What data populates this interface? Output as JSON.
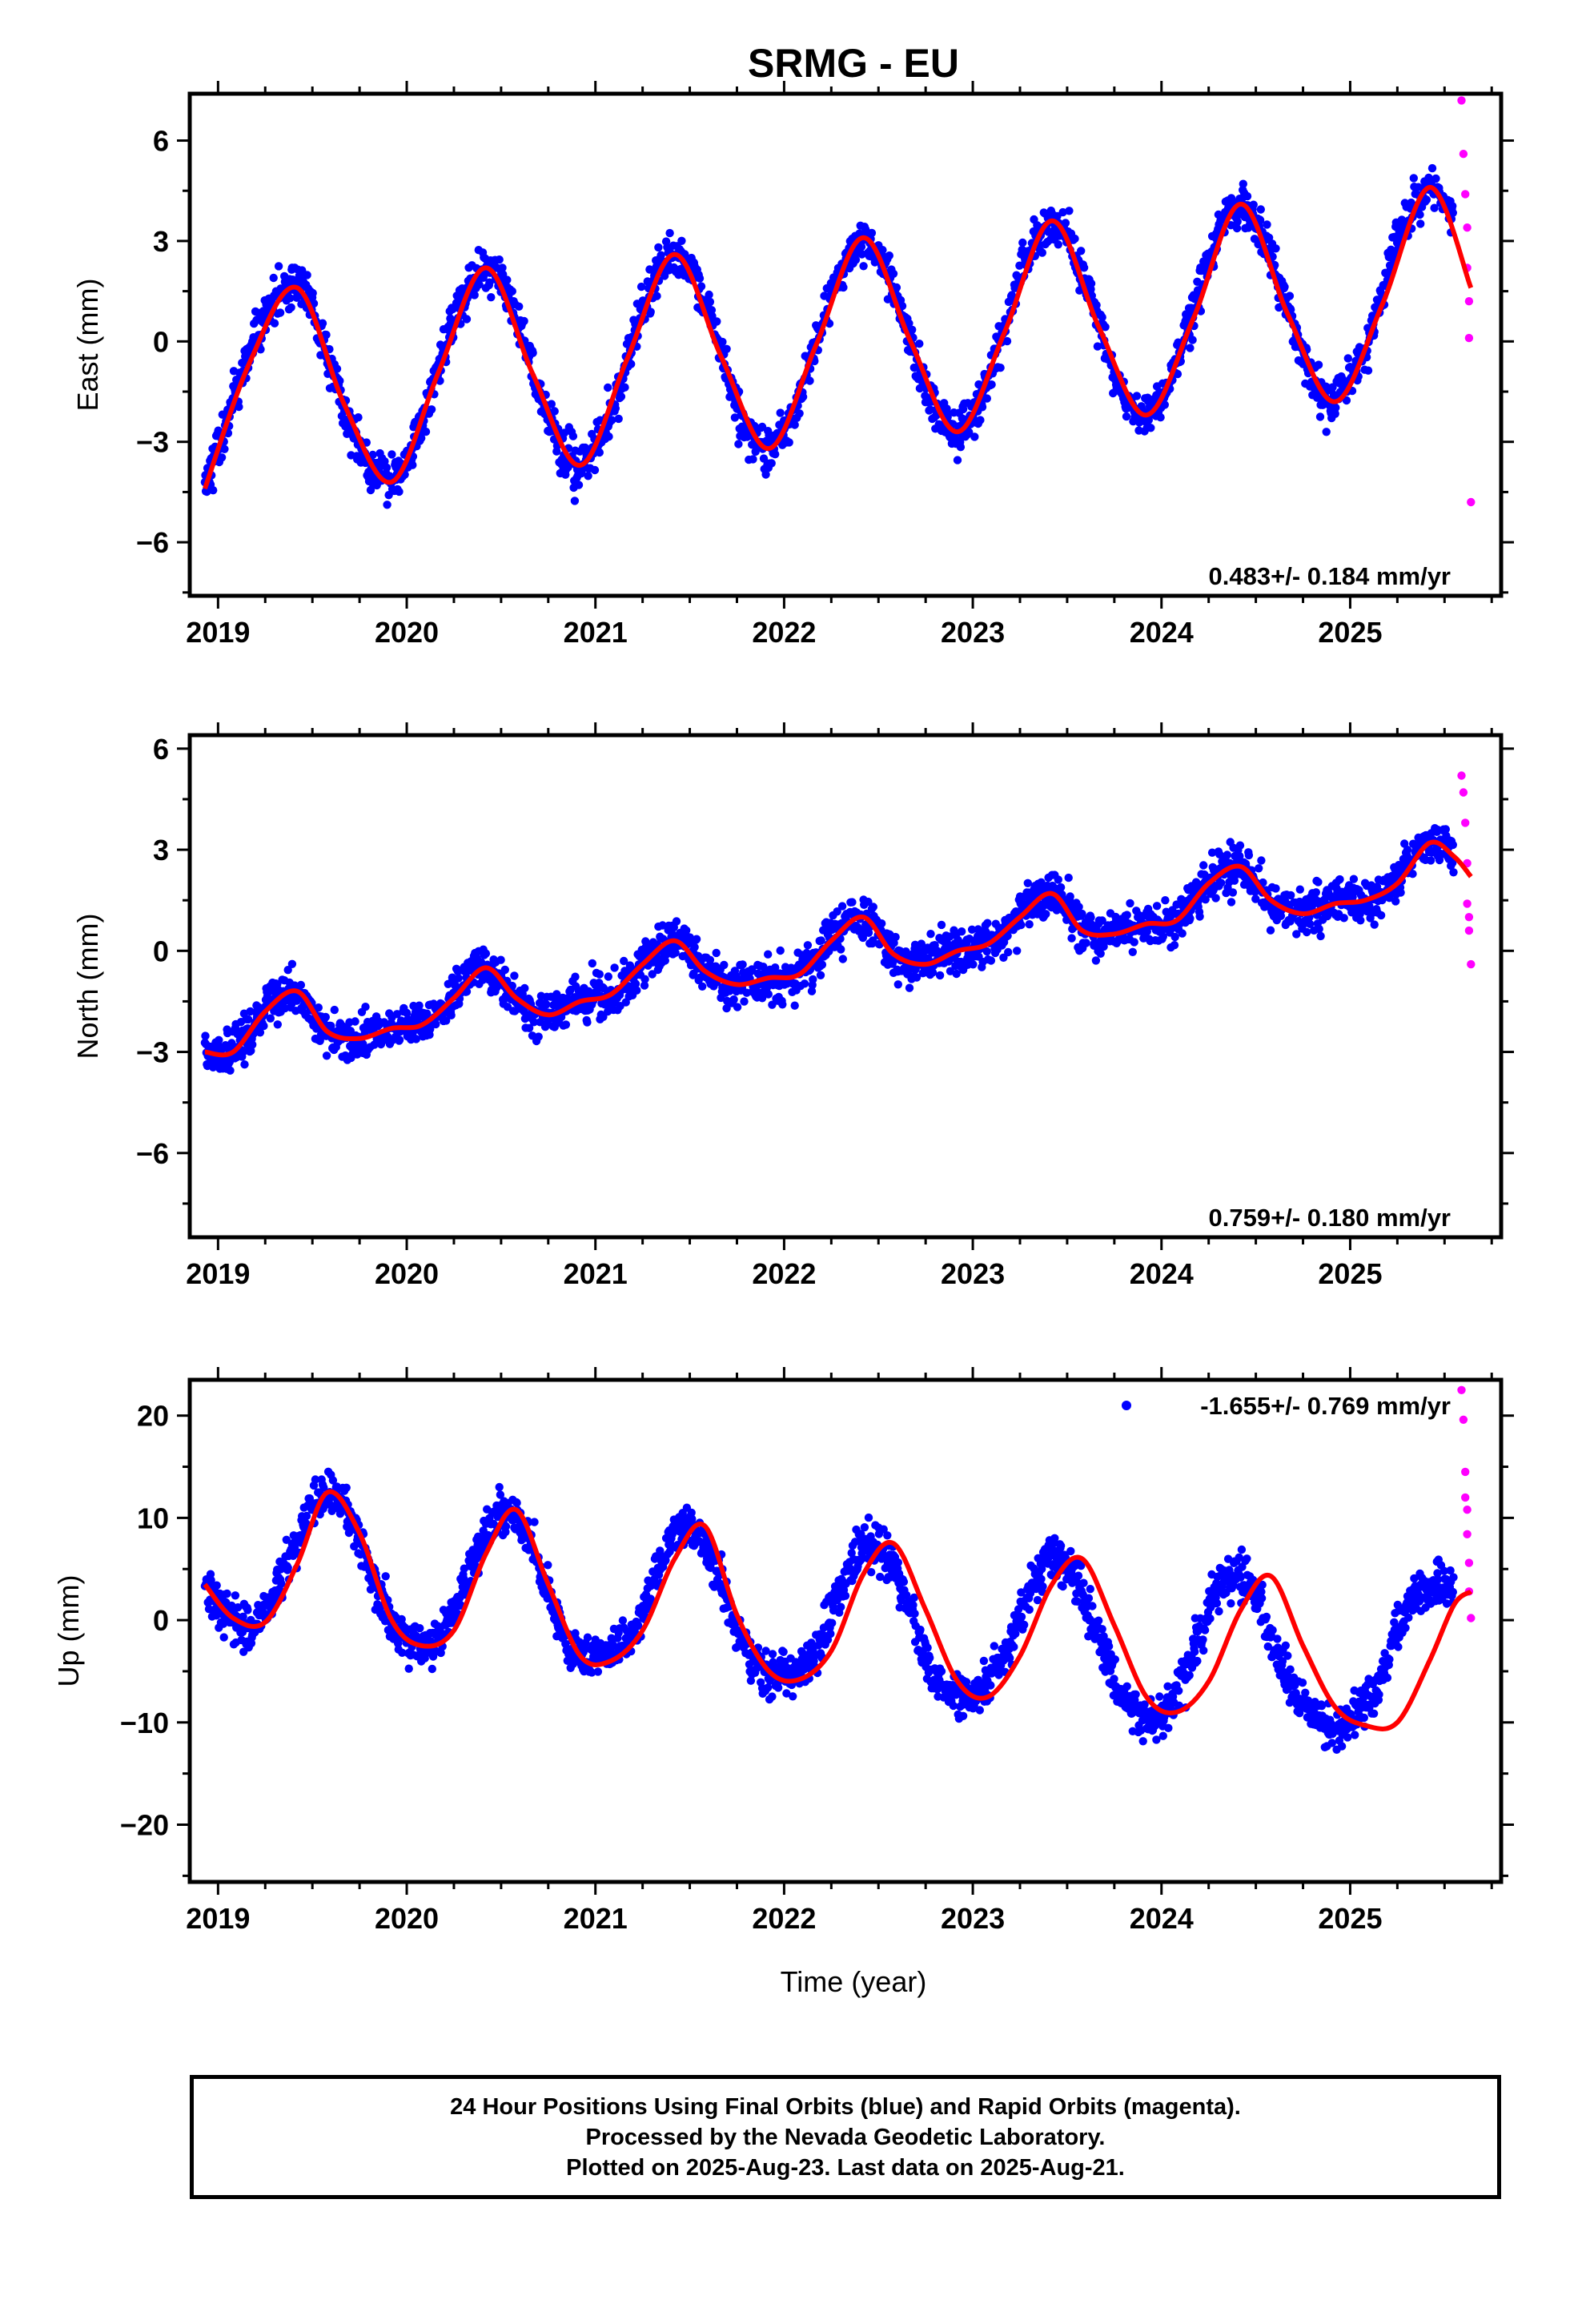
{
  "title": "SRMG - EU",
  "xlabel": "Time (year)",
  "colors": {
    "final": "#0000ff",
    "rapid": "#ff00ff",
    "trend": "#ff0000"
  },
  "footer": {
    "line1": "24 Hour Positions Using Final Orbits (blue) and Rapid Orbits (magenta).",
    "line2": "Processed by the Nevada Geodetic Laboratory.",
    "line3": "Plotted on 2025-Aug-23. Last data on 2025-Aug-21."
  },
  "chart_data": [
    {
      "type": "scatter",
      "name": "east",
      "ylabel": "East (mm)",
      "rate_label": "0.483+/- 0.184 mm/yr",
      "xlim": [
        2018.85,
        2025.8
      ],
      "ylim": [
        -7.6,
        7.4
      ],
      "xticks": [
        2019,
        2020,
        2021,
        2022,
        2023,
        2024,
        2025
      ],
      "yticks": [
        6,
        3,
        0,
        -3,
        -6
      ],
      "series": [
        {
          "name": "Final Orbits (blue)",
          "role": "final",
          "x": [
            2018.93,
            2019.0,
            2019.08,
            2019.17,
            2019.25,
            2019.33,
            2019.42,
            2019.5,
            2019.58,
            2019.67,
            2019.75,
            2019.83,
            2019.92,
            2020.0,
            2020.08,
            2020.17,
            2020.25,
            2020.33,
            2020.42,
            2020.5,
            2020.58,
            2020.67,
            2020.75,
            2020.83,
            2020.92,
            2021.0,
            2021.08,
            2021.17,
            2021.25,
            2021.33,
            2021.42,
            2021.5,
            2021.58,
            2021.67,
            2021.75,
            2021.83,
            2021.92,
            2022.0,
            2022.08,
            2022.17,
            2022.25,
            2022.33,
            2022.42,
            2022.5,
            2022.58,
            2022.67,
            2022.75,
            2022.83,
            2022.92,
            2023.0,
            2023.08,
            2023.17,
            2023.25,
            2023.33,
            2023.42,
            2023.5,
            2023.58,
            2023.67,
            2023.75,
            2023.83,
            2023.92,
            2024.0,
            2024.08,
            2024.17,
            2024.25,
            2024.33,
            2024.42,
            2024.5,
            2024.58,
            2024.67,
            2024.75,
            2024.83,
            2024.92,
            2025.0,
            2025.08,
            2025.17,
            2025.25,
            2025.33,
            2025.42,
            2025.5,
            2025.55
          ],
          "y": [
            -4.3,
            -3.3,
            -1.9,
            -0.3,
            0.8,
            1.5,
            1.7,
            1.1,
            -0.4,
            -2.0,
            -3.3,
            -4.0,
            -4.1,
            -3.6,
            -2.4,
            -0.8,
            0.7,
            1.7,
            2.2,
            1.9,
            0.7,
            -0.9,
            -2.4,
            -3.4,
            -3.7,
            -3.2,
            -2.1,
            -0.4,
            1.1,
            2.1,
            2.6,
            2.3,
            1.2,
            -0.4,
            -1.9,
            -2.9,
            -3.2,
            -2.8,
            -1.7,
            -0.1,
            1.5,
            2.6,
            3.1,
            2.7,
            1.6,
            0.1,
            -1.4,
            -2.4,
            -2.7,
            -2.3,
            -1.2,
            0.4,
            2.0,
            3.1,
            3.6,
            3.2,
            2.1,
            0.5,
            -1.0,
            -2.0,
            -2.2,
            -1.8,
            -0.7,
            0.9,
            2.5,
            3.6,
            4.1,
            3.7,
            2.5,
            1.0,
            -0.5,
            -1.5,
            -1.8,
            -1.3,
            -0.2,
            1.4,
            2.9,
            4.0,
            4.6,
            4.3,
            3.6
          ]
        },
        {
          "name": "Rapid Orbits (magenta)",
          "role": "rapid",
          "x": [
            2025.59,
            2025.6,
            2025.61,
            2025.62,
            2025.62,
            2025.63,
            2025.63,
            2025.64
          ],
          "y": [
            7.2,
            5.6,
            4.4,
            3.4,
            2.2,
            1.2,
            0.1,
            -4.8
          ]
        },
        {
          "name": "trend",
          "role": "trend",
          "x": [
            2018.93,
            2019.17,
            2019.42,
            2019.67,
            2019.92,
            2020.17,
            2020.42,
            2020.67,
            2020.92,
            2021.17,
            2021.42,
            2021.67,
            2021.92,
            2022.17,
            2022.42,
            2022.67,
            2022.92,
            2023.17,
            2023.42,
            2023.67,
            2023.92,
            2024.17,
            2024.42,
            2024.67,
            2024.92,
            2025.17,
            2025.42,
            2025.64
          ],
          "y": [
            -4.4,
            -0.6,
            1.6,
            -1.9,
            -4.2,
            -0.9,
            2.2,
            -1.0,
            -3.7,
            -0.5,
            2.6,
            -0.5,
            -3.2,
            -0.1,
            3.1,
            0.0,
            -2.7,
            0.3,
            3.6,
            0.4,
            -2.2,
            0.7,
            4.1,
            0.8,
            -1.8,
            1.1,
            4.6,
            1.6
          ]
        }
      ]
    },
    {
      "type": "scatter",
      "name": "north",
      "ylabel": "North (mm)",
      "rate_label": "0.759+/- 0.180 mm/yr",
      "xlim": [
        2018.85,
        2025.8
      ],
      "ylim": [
        -8.5,
        6.4
      ],
      "xticks": [
        2019,
        2020,
        2021,
        2022,
        2023,
        2024,
        2025
      ],
      "yticks": [
        6,
        3,
        0,
        -3,
        -6
      ],
      "series": [
        {
          "name": "Final Orbits (blue)",
          "role": "final",
          "x": [
            2018.93,
            2019.0,
            2019.08,
            2019.17,
            2019.25,
            2019.33,
            2019.42,
            2019.5,
            2019.58,
            2019.67,
            2019.75,
            2019.83,
            2019.92,
            2020.0,
            2020.08,
            2020.17,
            2020.25,
            2020.33,
            2020.42,
            2020.5,
            2020.58,
            2020.67,
            2020.75,
            2020.83,
            2020.92,
            2021.0,
            2021.08,
            2021.17,
            2021.25,
            2021.33,
            2021.42,
            2021.5,
            2021.58,
            2021.67,
            2021.75,
            2021.83,
            2021.92,
            2022.0,
            2022.08,
            2022.17,
            2022.25,
            2022.33,
            2022.42,
            2022.5,
            2022.58,
            2022.67,
            2022.75,
            2022.83,
            2022.92,
            2023.0,
            2023.08,
            2023.17,
            2023.25,
            2023.33,
            2023.42,
            2023.5,
            2023.58,
            2023.67,
            2023.75,
            2023.83,
            2023.92,
            2024.0,
            2024.08,
            2024.17,
            2024.25,
            2024.33,
            2024.42,
            2024.5,
            2024.58,
            2024.67,
            2024.75,
            2024.83,
            2024.92,
            2025.0,
            2025.08,
            2025.17,
            2025.25,
            2025.33,
            2025.42,
            2025.5,
            2025.55
          ],
          "y": [
            -3.0,
            -3.1,
            -3.0,
            -2.4,
            -1.7,
            -1.3,
            -1.3,
            -1.8,
            -2.5,
            -2.7,
            -2.6,
            -2.4,
            -2.3,
            -2.3,
            -2.2,
            -1.9,
            -1.3,
            -0.7,
            -0.5,
            -0.8,
            -1.5,
            -1.9,
            -1.9,
            -1.7,
            -1.5,
            -1.4,
            -1.3,
            -1.0,
            -0.4,
            0.1,
            0.3,
            0.0,
            -0.6,
            -1.0,
            -1.0,
            -0.9,
            -0.8,
            -0.8,
            -0.7,
            -0.3,
            0.4,
            0.9,
            1.0,
            0.5,
            -0.2,
            -0.4,
            -0.3,
            -0.1,
            0.0,
            0.1,
            0.2,
            0.5,
            1.1,
            1.6,
            1.7,
            1.3,
            0.6,
            0.4,
            0.5,
            0.7,
            0.8,
            0.7,
            0.9,
            1.4,
            2.1,
            2.5,
            2.5,
            2.0,
            1.5,
            1.2,
            1.1,
            1.3,
            1.5,
            1.5,
            1.5,
            1.6,
            2.1,
            2.8,
            3.2,
            3.1,
            2.7
          ]
        },
        {
          "name": "Rapid Orbits (magenta)",
          "role": "rapid",
          "x": [
            2025.59,
            2025.6,
            2025.61,
            2025.62,
            2025.62,
            2025.63,
            2025.63,
            2025.64
          ],
          "y": [
            5.2,
            4.7,
            3.8,
            2.6,
            1.4,
            1.0,
            0.6,
            -0.4
          ]
        },
        {
          "name": "trend",
          "role": "trend",
          "x": [
            2018.93,
            2019.08,
            2019.25,
            2019.42,
            2019.58,
            2019.75,
            2019.92,
            2020.08,
            2020.25,
            2020.42,
            2020.58,
            2020.75,
            2020.92,
            2021.08,
            2021.25,
            2021.42,
            2021.58,
            2021.75,
            2021.92,
            2022.08,
            2022.25,
            2022.42,
            2022.58,
            2022.75,
            2022.92,
            2023.08,
            2023.25,
            2023.42,
            2023.58,
            2023.75,
            2023.92,
            2024.08,
            2024.25,
            2024.42,
            2024.58,
            2024.75,
            2024.92,
            2025.08,
            2025.25,
            2025.42,
            2025.55,
            2025.64
          ],
          "y": [
            -3.0,
            -3.0,
            -1.8,
            -1.2,
            -2.4,
            -2.6,
            -2.3,
            -2.2,
            -1.4,
            -0.5,
            -1.4,
            -1.9,
            -1.5,
            -1.3,
            -0.4,
            0.3,
            -0.6,
            -1.0,
            -0.8,
            -0.7,
            0.3,
            1.0,
            -0.1,
            -0.4,
            0.0,
            0.2,
            1.0,
            1.7,
            0.6,
            0.5,
            0.8,
            0.9,
            2.0,
            2.5,
            1.5,
            1.1,
            1.4,
            1.5,
            2.0,
            3.2,
            2.8,
            2.2
          ]
        }
      ]
    },
    {
      "type": "scatter",
      "name": "up",
      "ylabel": "Up (mm)",
      "rate_label": "-1.655+/- 0.769 mm/yr",
      "xlim": [
        2018.85,
        2025.8
      ],
      "ylim": [
        -25.6,
        23.5
      ],
      "xticks": [
        2019,
        2020,
        2021,
        2022,
        2023,
        2024,
        2025
      ],
      "yticks": [
        20,
        10,
        0,
        -10,
        -20
      ],
      "series": [
        {
          "name": "Final Orbits (blue)",
          "role": "final",
          "x": [
            2018.93,
            2019.0,
            2019.08,
            2019.17,
            2019.25,
            2019.33,
            2019.42,
            2019.5,
            2019.58,
            2019.67,
            2019.75,
            2019.83,
            2019.92,
            2020.0,
            2020.08,
            2020.17,
            2020.25,
            2020.33,
            2020.42,
            2020.5,
            2020.58,
            2020.67,
            2020.75,
            2020.83,
            2020.92,
            2021.0,
            2021.08,
            2021.17,
            2021.25,
            2021.33,
            2021.42,
            2021.5,
            2021.58,
            2021.67,
            2021.75,
            2021.83,
            2021.92,
            2022.0,
            2022.08,
            2022.17,
            2022.25,
            2022.33,
            2022.42,
            2022.5,
            2022.58,
            2022.67,
            2022.75,
            2022.83,
            2022.92,
            2023.0,
            2023.08,
            2023.17,
            2023.25,
            2023.33,
            2023.42,
            2023.5,
            2023.58,
            2023.67,
            2023.75,
            2023.83,
            2023.92,
            2024.0,
            2024.08,
            2024.17,
            2024.25,
            2024.33,
            2024.42,
            2024.5,
            2024.58,
            2024.67,
            2024.75,
            2024.83,
            2024.92,
            2025.0,
            2025.08,
            2025.17,
            2025.25,
            2025.33,
            2025.42,
            2025.5,
            2025.55
          ],
          "y": [
            3.5,
            1.5,
            0.0,
            -1.0,
            0.5,
            4.0,
            8.0,
            11.0,
            12.5,
            11.5,
            8.0,
            3.5,
            0.0,
            -2.0,
            -2.5,
            -2.0,
            0.5,
            4.5,
            8.5,
            10.8,
            10.0,
            7.0,
            2.5,
            -1.5,
            -3.5,
            -4.0,
            -3.5,
            -2.0,
            1.0,
            5.0,
            8.5,
            9.5,
            7.5,
            3.0,
            -1.5,
            -4.0,
            -5.5,
            -5.5,
            -5.0,
            -3.0,
            0.5,
            4.5,
            7.5,
            7.5,
            5.0,
            1.0,
            -3.5,
            -6.5,
            -7.5,
            -7.5,
            -6.0,
            -3.5,
            0.0,
            4.0,
            6.0,
            5.5,
            2.5,
            -2.0,
            -6.0,
            -8.5,
            -9.5,
            -9.0,
            -7.0,
            -3.0,
            1.0,
            4.0,
            4.5,
            2.5,
            -1.5,
            -5.5,
            -8.5,
            -10.0,
            -10.5,
            -10.0,
            -8.5,
            -5.5,
            -1.0,
            2.0,
            3.0,
            3.5,
            3.0
          ]
        },
        {
          "name": "Rapid Orbits (magenta)",
          "role": "rapid",
          "x": [
            2025.59,
            2025.6,
            2025.61,
            2025.61,
            2025.62,
            2025.62,
            2025.63,
            2025.63,
            2025.64
          ],
          "y": [
            22.5,
            19.6,
            14.5,
            12.0,
            10.8,
            8.4,
            5.6,
            2.8,
            0.2
          ]
        },
        {
          "name": "trend",
          "role": "trend",
          "x": [
            2018.93,
            2019.08,
            2019.25,
            2019.42,
            2019.58,
            2019.75,
            2019.92,
            2020.08,
            2020.25,
            2020.42,
            2020.58,
            2020.75,
            2020.92,
            2021.08,
            2021.25,
            2021.42,
            2021.58,
            2021.75,
            2021.92,
            2022.08,
            2022.25,
            2022.42,
            2022.58,
            2022.75,
            2022.92,
            2023.08,
            2023.25,
            2023.42,
            2023.58,
            2023.75,
            2023.92,
            2024.08,
            2024.25,
            2024.42,
            2024.58,
            2024.75,
            2024.92,
            2025.08,
            2025.25,
            2025.42,
            2025.55,
            2025.64
          ],
          "y": [
            3.5,
            0.2,
            -0.2,
            5.5,
            12.5,
            8.5,
            0.0,
            -2.5,
            -1.0,
            6.5,
            10.8,
            3.5,
            -3.5,
            -4.0,
            -1.0,
            6.0,
            9.2,
            0.5,
            -5.0,
            -5.8,
            -3.0,
            4.5,
            7.5,
            1.0,
            -6.0,
            -7.5,
            -3.5,
            3.5,
            6.0,
            -0.5,
            -7.5,
            -9.0,
            -6.0,
            1.0,
            4.3,
            -2.5,
            -8.5,
            -10.3,
            -10.0,
            -4.0,
            1.5,
            2.8
          ]
        }
      ]
    }
  ]
}
